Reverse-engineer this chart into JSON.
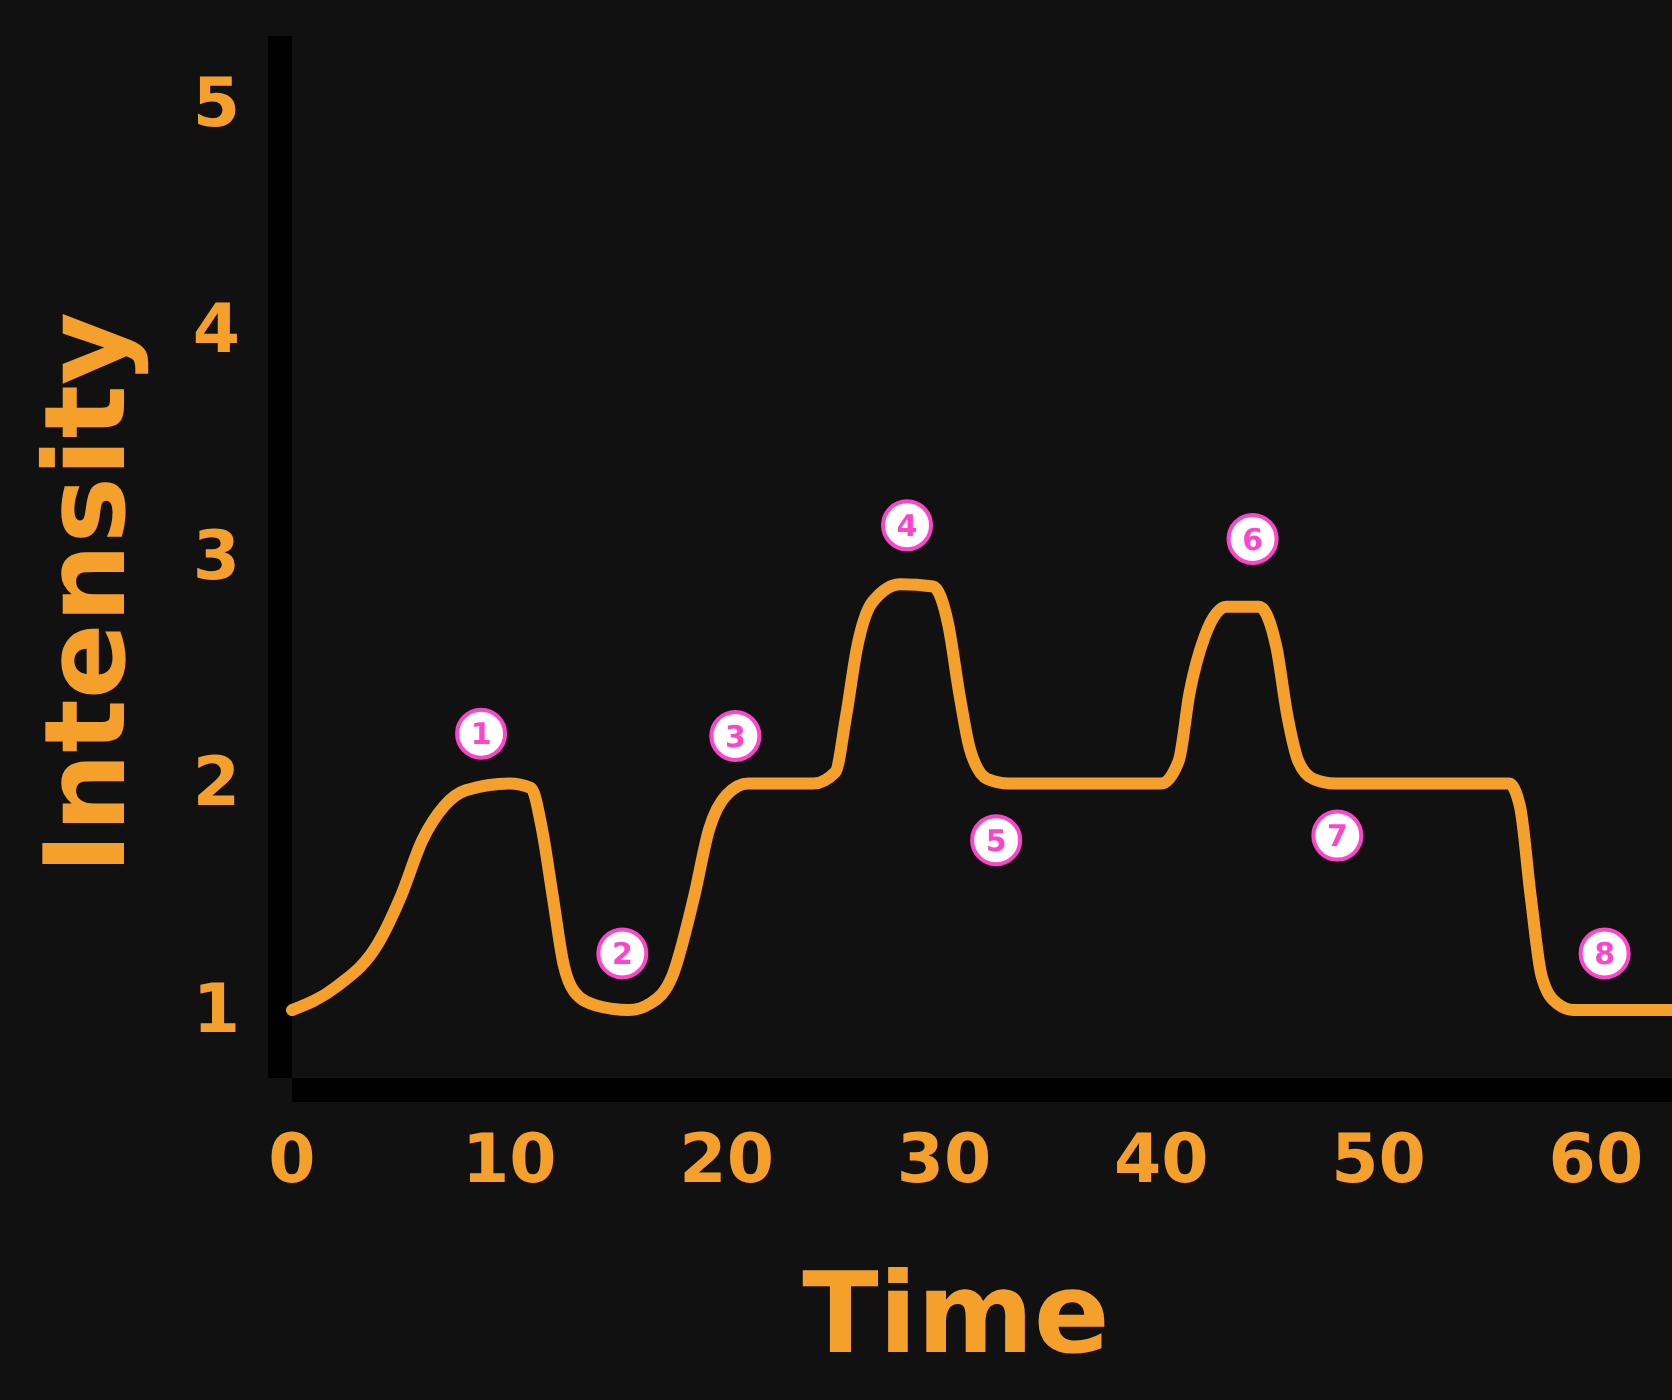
{
  "chart_data": {
    "type": "line",
    "xlabel": "Time",
    "ylabel": "Intensity",
    "xlim": [
      0,
      63.5
    ],
    "ylim": [
      0.7,
      5.3
    ],
    "xticks": [
      0,
      10,
      20,
      30,
      40,
      50,
      60
    ],
    "yticks": [
      1,
      2,
      3,
      4,
      5
    ],
    "grid": false,
    "marker": "none",
    "line_style": "solid",
    "series": [
      {
        "color": "#f5a02a",
        "x": [
          0,
          2,
          4,
          5,
          6,
          7,
          8,
          10,
          11,
          11.5,
          12,
          12.5,
          13,
          14,
          15.5,
          16.5,
          17.5,
          18.5,
          19.2,
          20,
          21,
          24,
          25,
          25.5,
          26,
          26.7,
          28,
          29.5,
          30.2,
          30.7,
          31.2,
          32,
          33,
          40,
          40.8,
          41.3,
          42,
          43,
          44.5,
          45.3,
          45.8,
          46.3,
          47,
          48,
          56,
          56.5,
          57,
          57.5,
          58.2,
          59,
          63.5
        ],
        "values": [
          1.0,
          1.1,
          1.3,
          1.5,
          1.75,
          1.9,
          1.97,
          2.0,
          1.98,
          1.8,
          1.5,
          1.2,
          1.08,
          1.02,
          1.0,
          1.03,
          1.15,
          1.5,
          1.8,
          1.95,
          2.0,
          2.0,
          2.05,
          2.3,
          2.6,
          2.8,
          2.88,
          2.87,
          2.7,
          2.4,
          2.15,
          2.02,
          2.0,
          2.0,
          2.1,
          2.4,
          2.65,
          2.78,
          2.78,
          2.6,
          2.3,
          2.1,
          2.02,
          2.0,
          2.0,
          1.9,
          1.5,
          1.15,
          1.03,
          1.0,
          1.0
        ]
      }
    ],
    "annotations": [
      {
        "text": "1",
        "x": 8.7,
        "y": 2.22
      },
      {
        "text": "2",
        "x": 15.2,
        "y": 1.25
      },
      {
        "text": "3",
        "x": 20.4,
        "y": 2.21
      },
      {
        "text": "4",
        "x": 28.3,
        "y": 3.14
      },
      {
        "text": "5",
        "x": 32.4,
        "y": 1.75
      },
      {
        "text": "6",
        "x": 44.2,
        "y": 3.08
      },
      {
        "text": "7",
        "x": 48.1,
        "y": 1.77
      },
      {
        "text": "8",
        "x": 60.4,
        "y": 1.25
      }
    ]
  }
}
